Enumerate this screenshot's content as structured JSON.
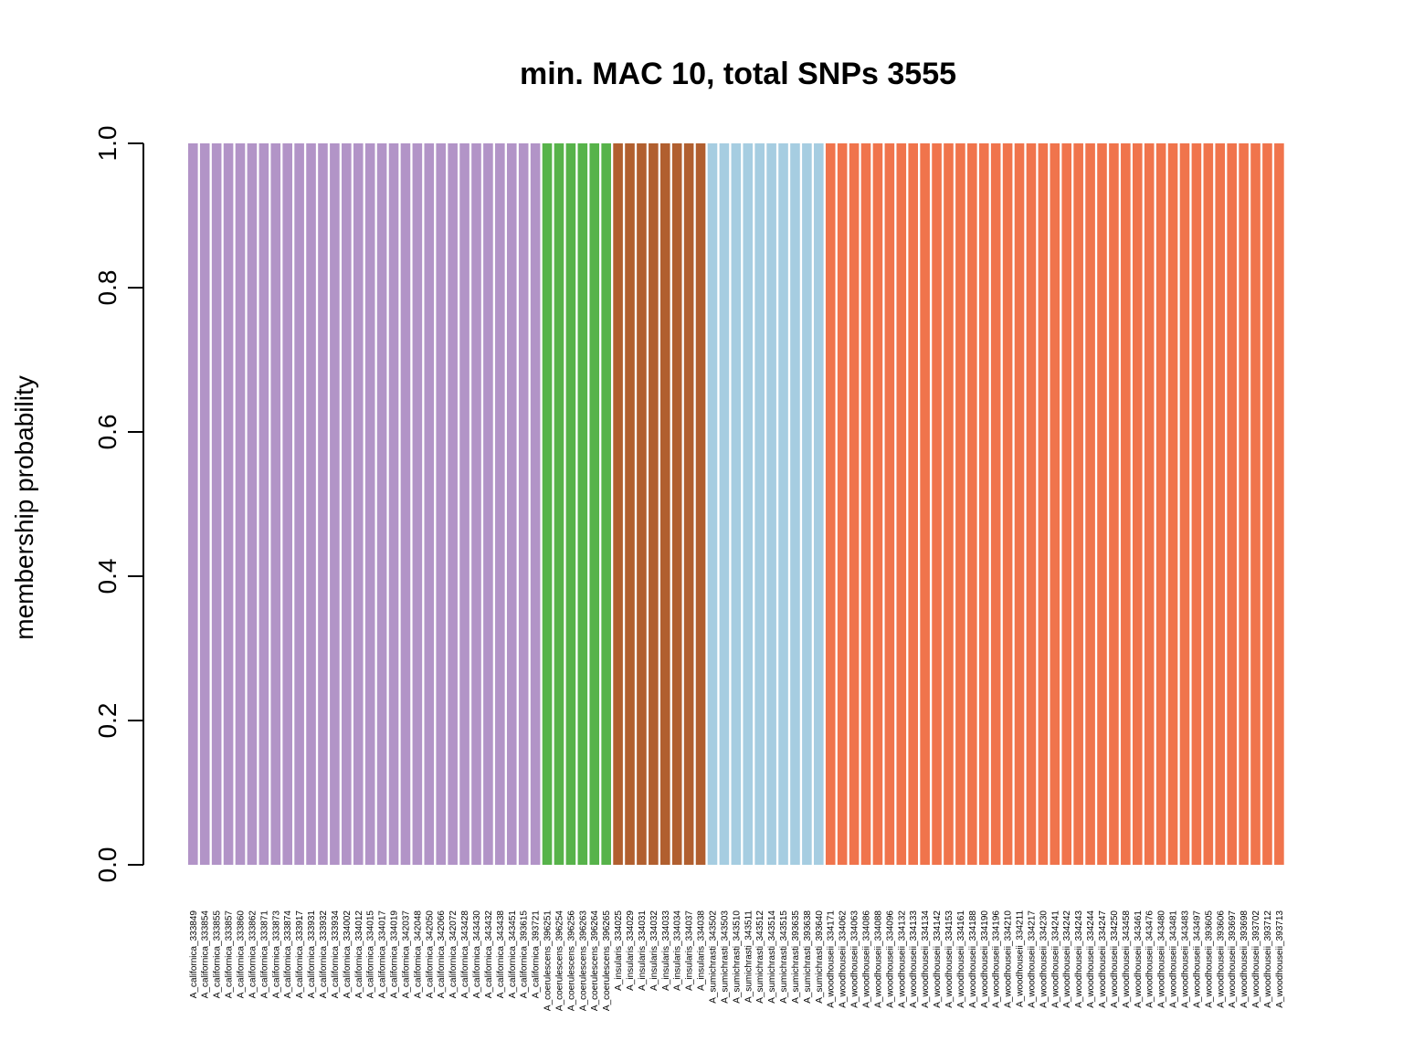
{
  "chart_data": {
    "type": "bar",
    "stacked": true,
    "title": "min. MAC 10, total SNPs 3555",
    "xlabel": "",
    "ylabel": "membership probability",
    "ylim": [
      0,
      1
    ],
    "yticks": [
      "0.0",
      "0.2",
      "0.4",
      "0.6",
      "0.8",
      "1.0"
    ],
    "grid": false,
    "categories": [
      "A_californica_333849",
      "A_californica_333854",
      "A_californica_333855",
      "A_californica_333857",
      "A_californica_333860",
      "A_californica_333862",
      "A_californica_333871",
      "A_californica_333873",
      "A_californica_333874",
      "A_californica_333917",
      "A_californica_333931",
      "A_californica_333932",
      "A_californica_333934",
      "A_californica_334002",
      "A_californica_334012",
      "A_californica_334015",
      "A_californica_334017",
      "A_californica_334019",
      "A_californica_342037",
      "A_californica_342048",
      "A_californica_342050",
      "A_californica_342066",
      "A_californica_342072",
      "A_californica_343428",
      "A_californica_343430",
      "A_californica_343432",
      "A_californica_343438",
      "A_californica_343451",
      "A_californica_393615",
      "A_californica_393721",
      "A_coerulescens_396251",
      "A_coerulescens_396254",
      "A_coerulescens_396256",
      "A_coerulescens_396263",
      "A_coerulescens_396264",
      "A_coerulescens_396265",
      "A_insularis_334025",
      "A_insularis_334029",
      "A_insularis_334031",
      "A_insularis_334032",
      "A_insularis_334033",
      "A_insularis_334034",
      "A_insularis_334037",
      "A_insularis_334038",
      "A_sumichrasti_343502",
      "A_sumichrasti_343503",
      "A_sumichrasti_343510",
      "A_sumichrasti_343511",
      "A_sumichrasti_343512",
      "A_sumichrasti_343514",
      "A_sumichrasti_343515",
      "A_sumichrasti_393635",
      "A_sumichrasti_393638",
      "A_sumichrasti_393640",
      "A_woodhouseii_334171",
      "A_woodhouseii_334062",
      "A_woodhouseii_334063",
      "A_woodhouseii_334086",
      "A_woodhouseii_334088",
      "A_woodhouseii_334096",
      "A_woodhouseii_334132",
      "A_woodhouseii_334133",
      "A_woodhouseii_334134",
      "A_woodhouseii_334142",
      "A_woodhouseii_334153",
      "A_woodhouseii_334161",
      "A_woodhouseii_334188",
      "A_woodhouseii_334190",
      "A_woodhouseii_334196",
      "A_woodhouseii_334210",
      "A_woodhouseii_334211",
      "A_woodhouseii_334217",
      "A_woodhouseii_334230",
      "A_woodhouseii_334241",
      "A_woodhouseii_334242",
      "A_woodhouseii_334243",
      "A_woodhouseii_334244",
      "A_woodhouseii_334247",
      "A_woodhouseii_334250",
      "A_woodhouseii_343458",
      "A_woodhouseii_343461",
      "A_woodhouseii_343476",
      "A_woodhouseii_343480",
      "A_woodhouseii_343481",
      "A_woodhouseii_343483",
      "A_woodhouseii_343497",
      "A_woodhouseii_393605",
      "A_woodhouseii_393606",
      "A_woodhouseii_393697",
      "A_woodhouseii_393698",
      "A_woodhouseii_393702",
      "A_woodhouseii_393712",
      "A_woodhouseii_393713"
    ],
    "cluster_colors": [
      "#b294c7",
      "#57b34a",
      "#b15f2f",
      "#a6cde1",
      "#f0744c"
    ],
    "assignments": [
      0,
      0,
      0,
      0,
      0,
      0,
      0,
      0,
      0,
      0,
      0,
      0,
      0,
      0,
      0,
      0,
      0,
      0,
      0,
      0,
      0,
      0,
      0,
      0,
      0,
      0,
      0,
      0,
      0,
      0,
      1,
      1,
      1,
      1,
      1,
      1,
      2,
      2,
      2,
      2,
      2,
      2,
      2,
      2,
      3,
      3,
      3,
      3,
      3,
      3,
      3,
      3,
      3,
      3,
      4,
      4,
      4,
      4,
      4,
      4,
      4,
      4,
      4,
      4,
      4,
      4,
      4,
      4,
      4,
      4,
      4,
      4,
      4,
      4,
      4,
      4,
      4,
      4,
      4,
      4,
      4,
      4,
      4,
      4,
      4,
      4,
      4,
      4,
      4,
      4,
      4,
      4,
      4
    ],
    "values": [
      1,
      1,
      1,
      1,
      1,
      1,
      1,
      1,
      1,
      1,
      1,
      1,
      1,
      1,
      1,
      1,
      1,
      1,
      1,
      1,
      1,
      1,
      1,
      1,
      1,
      1,
      1,
      1,
      1,
      1,
      1,
      1,
      1,
      1,
      1,
      1,
      1,
      1,
      1,
      1,
      1,
      1,
      1,
      1,
      1,
      1,
      1,
      1,
      1,
      1,
      1,
      1,
      1,
      1,
      1,
      1,
      1,
      1,
      1,
      1,
      1,
      1,
      1,
      1,
      1,
      1,
      1,
      1,
      1,
      1,
      1,
      1,
      1,
      1,
      1,
      1,
      1,
      1,
      1,
      1,
      1,
      1,
      1,
      1,
      1,
      1,
      1,
      1,
      1,
      1,
      1,
      1,
      1
    ]
  }
}
